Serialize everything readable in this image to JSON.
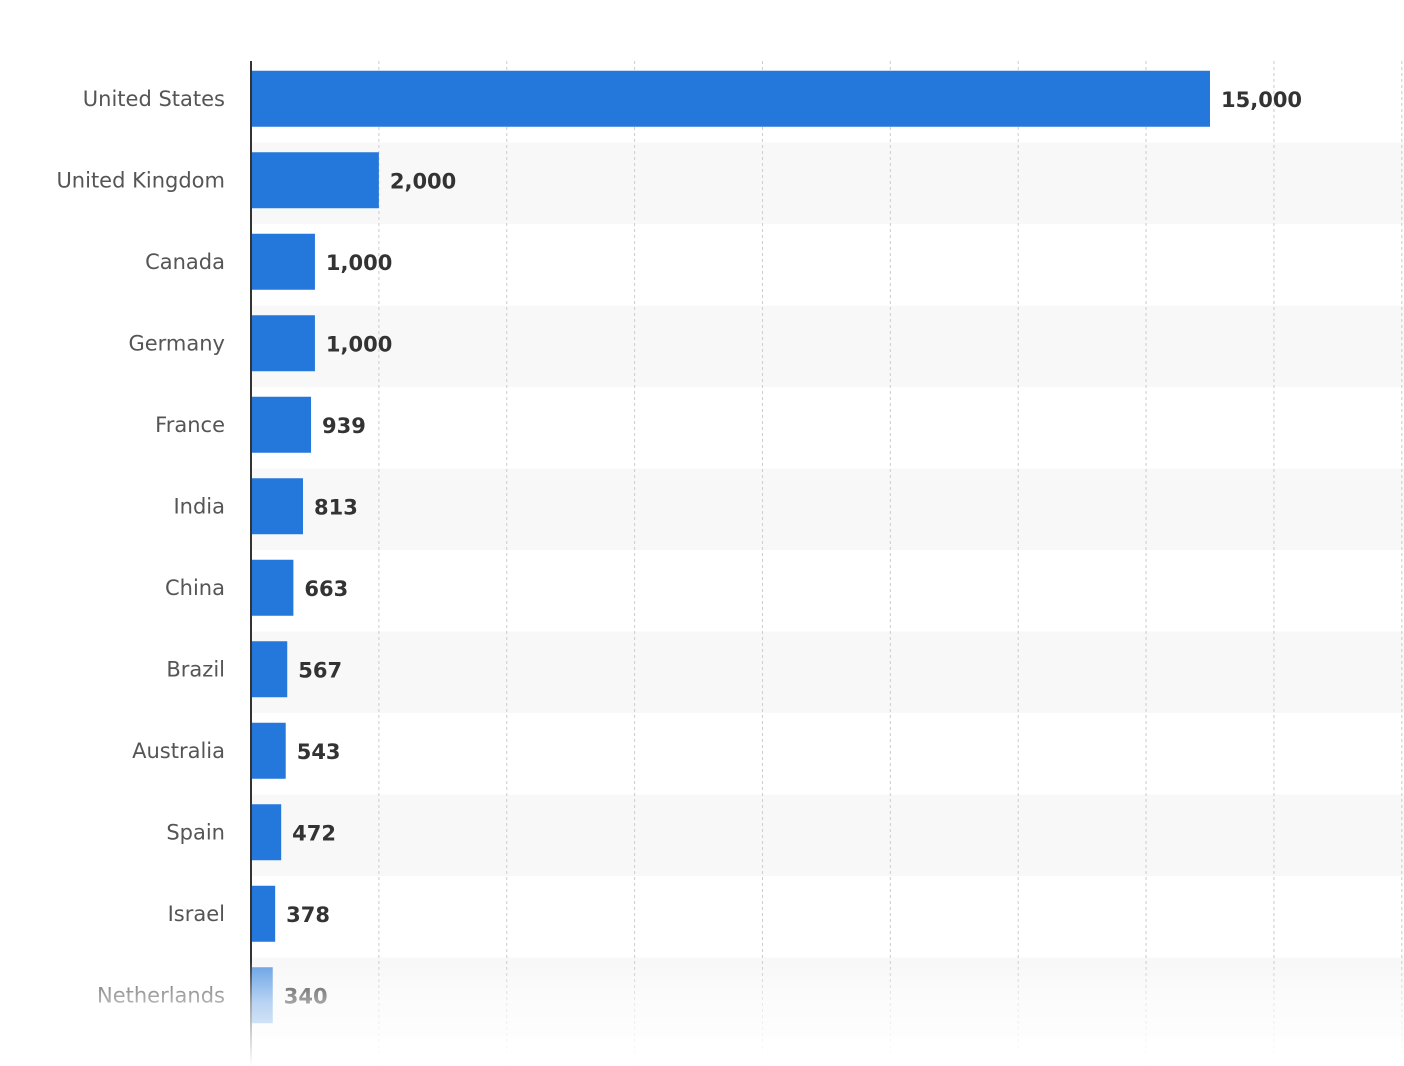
{
  "chart_data": {
    "type": "bar",
    "orientation": "horizontal",
    "categories": [
      "United States",
      "United Kingdom",
      "Canada",
      "Germany",
      "France",
      "India",
      "China",
      "Brazil",
      "Australia",
      "Spain",
      "Israel",
      "Netherlands"
    ],
    "values": [
      15000,
      2000,
      1000,
      1000,
      939,
      813,
      663,
      567,
      543,
      472,
      378,
      340
    ],
    "value_labels": [
      "15,000",
      "2,000",
      "1,000",
      "1,000",
      "939",
      "813",
      "663",
      "567",
      "543",
      "472",
      "378",
      "340"
    ],
    "title": "",
    "xlabel": "",
    "ylabel": "",
    "xlim": [
      0,
      18000
    ],
    "grid": true,
    "legend": "none",
    "colors": {
      "bar": "#2477db",
      "band": "#f8f8f8",
      "grid": "#cccccc",
      "axis": "#333333"
    }
  }
}
